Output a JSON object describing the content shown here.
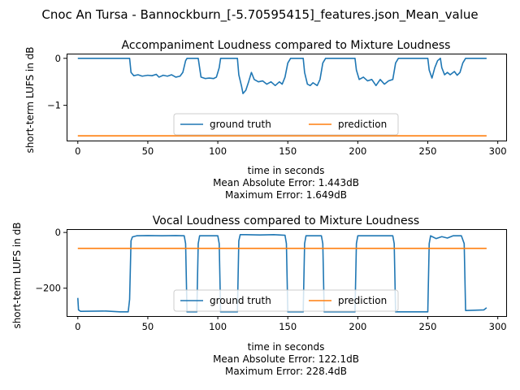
{
  "suptitle": "Cnoc An Tursa - Bannockburn_[-5.70595415]_features.json_Mean_value",
  "chart_data": [
    {
      "type": "line",
      "title": "Accompaniment Loudness compared to Mixture Loudness",
      "xlabel": "time in seconds",
      "ylabel": "short-term LUFS in dB",
      "footer": [
        "Mean Absolute Error: 1.443dB",
        "Maximum Error: 1.649dB"
      ],
      "xlim": [
        -8,
        306
      ],
      "ylim": [
        -1.75,
        0.1
      ],
      "xticks": [
        0,
        50,
        100,
        150,
        200,
        250,
        300
      ],
      "yticks": [
        0,
        -1
      ],
      "ytick_labels": [
        "0",
        "−1"
      ],
      "grid": false,
      "legend": {
        "position": "lower-center",
        "ncol": 2
      },
      "series": [
        {
          "name": "ground truth",
          "color": "#1f77b4",
          "points": [
            [
              0,
              0
            ],
            [
              37,
              0
            ],
            [
              38,
              -0.3
            ],
            [
              40,
              -0.37
            ],
            [
              43,
              -0.35
            ],
            [
              46,
              -0.38
            ],
            [
              50,
              -0.36
            ],
            [
              53,
              -0.37
            ],
            [
              56,
              -0.34
            ],
            [
              58,
              -0.4
            ],
            [
              61,
              -0.36
            ],
            [
              64,
              -0.38
            ],
            [
              67,
              -0.35
            ],
            [
              70,
              -0.4
            ],
            [
              73,
              -0.38
            ],
            [
              75,
              -0.3
            ],
            [
              77,
              -0.05
            ],
            [
              78,
              0
            ],
            [
              86,
              0
            ],
            [
              87,
              -0.2
            ],
            [
              88,
              -0.4
            ],
            [
              91,
              -0.43
            ],
            [
              94,
              -0.42
            ],
            [
              97,
              -0.43
            ],
            [
              99,
              -0.4
            ],
            [
              101,
              -0.2
            ],
            [
              102,
              0
            ],
            [
              114,
              0
            ],
            [
              115,
              -0.35
            ],
            [
              117,
              -0.6
            ],
            [
              118,
              -0.75
            ],
            [
              120,
              -0.68
            ],
            [
              122,
              -0.5
            ],
            [
              124,
              -0.3
            ],
            [
              126,
              -0.45
            ],
            [
              129,
              -0.5
            ],
            [
              132,
              -0.48
            ],
            [
              135,
              -0.55
            ],
            [
              138,
              -0.5
            ],
            [
              141,
              -0.58
            ],
            [
              144,
              -0.5
            ],
            [
              146,
              -0.55
            ],
            [
              148,
              -0.4
            ],
            [
              150,
              -0.1
            ],
            [
              152,
              0
            ],
            [
              161,
              0
            ],
            [
              162,
              -0.3
            ],
            [
              164,
              -0.55
            ],
            [
              166,
              -0.58
            ],
            [
              168,
              -0.52
            ],
            [
              171,
              -0.58
            ],
            [
              173,
              -0.45
            ],
            [
              175,
              -0.1
            ],
            [
              177,
              0
            ],
            [
              198,
              0
            ],
            [
              199,
              -0.25
            ],
            [
              201,
              -0.45
            ],
            [
              204,
              -0.4
            ],
            [
              207,
              -0.48
            ],
            [
              210,
              -0.45
            ],
            [
              213,
              -0.58
            ],
            [
              216,
              -0.45
            ],
            [
              219,
              -0.55
            ],
            [
              222,
              -0.48
            ],
            [
              225,
              -0.45
            ],
            [
              227,
              -0.1
            ],
            [
              229,
              0
            ],
            [
              250,
              0
            ],
            [
              251,
              -0.25
            ],
            [
              253,
              -0.42
            ],
            [
              255,
              -0.2
            ],
            [
              257,
              -0.05
            ],
            [
              259,
              0
            ],
            [
              260,
              -0.2
            ],
            [
              262,
              -0.35
            ],
            [
              264,
              -0.3
            ],
            [
              266,
              -0.35
            ],
            [
              269,
              -0.28
            ],
            [
              271,
              -0.36
            ],
            [
              273,
              -0.3
            ],
            [
              275,
              -0.1
            ],
            [
              277,
              0
            ],
            [
              292,
              0
            ]
          ]
        },
        {
          "name": "prediction",
          "color": "#ff7f0e",
          "points": [
            [
              0,
              -1.649
            ],
            [
              292,
              -1.649
            ]
          ]
        }
      ]
    },
    {
      "type": "line",
      "title": "Vocal Loudness compared to Mixture Loudness",
      "xlabel": "time in seconds",
      "ylabel": "short-term LUFS in dB",
      "footer": [
        "Mean Absolute Error: 122.1dB",
        "Maximum Error: 228.4dB"
      ],
      "xlim": [
        -8,
        306
      ],
      "ylim": [
        -300,
        12
      ],
      "xticks": [
        0,
        50,
        100,
        150,
        200,
        250,
        300
      ],
      "yticks": [
        0,
        -200
      ],
      "ytick_labels": [
        "0",
        "−200"
      ],
      "grid": false,
      "legend": {
        "position": "lower-center",
        "ncol": 2
      },
      "series": [
        {
          "name": "ground truth",
          "color": "#1f77b4",
          "points": [
            [
              0,
              -235
            ],
            [
              0.5,
              -278
            ],
            [
              2,
              -283
            ],
            [
              20,
              -282
            ],
            [
              30,
              -285
            ],
            [
              36,
              -285
            ],
            [
              37,
              -240
            ],
            [
              38,
              -30
            ],
            [
              39,
              -16
            ],
            [
              42,
              -12
            ],
            [
              50,
              -11
            ],
            [
              60,
              -12
            ],
            [
              70,
              -11
            ],
            [
              76,
              -12
            ],
            [
              77,
              -40
            ],
            [
              78,
              -285
            ],
            [
              85,
              -285
            ],
            [
              86,
              -40
            ],
            [
              87,
              -12
            ],
            [
              95,
              -12
            ],
            [
              100,
              -12
            ],
            [
              101,
              -40
            ],
            [
              102,
              -285
            ],
            [
              114,
              -285
            ],
            [
              115,
              -30
            ],
            [
              116,
              -8
            ],
            [
              120,
              -8
            ],
            [
              130,
              -9
            ],
            [
              140,
              -8
            ],
            [
              148,
              -10
            ],
            [
              149,
              -40
            ],
            [
              150,
              -285
            ],
            [
              161,
              -285
            ],
            [
              162,
              -40
            ],
            [
              163,
              -12
            ],
            [
              170,
              -12
            ],
            [
              174,
              -12
            ],
            [
              175,
              -40
            ],
            [
              176,
              -285
            ],
            [
              198,
              -285
            ],
            [
              199,
              -40
            ],
            [
              200,
              -12
            ],
            [
              210,
              -12
            ],
            [
              220,
              -12
            ],
            [
              225,
              -12
            ],
            [
              226,
              -40
            ],
            [
              227,
              -285
            ],
            [
              250,
              -285
            ],
            [
              251,
              -40
            ],
            [
              252,
              -12
            ],
            [
              256,
              -22
            ],
            [
              260,
              -15
            ],
            [
              264,
              -20
            ],
            [
              268,
              -12
            ],
            [
              274,
              -12
            ],
            [
              276,
              -40
            ],
            [
              277,
              -280
            ],
            [
              290,
              -278
            ],
            [
              292,
              -270
            ]
          ]
        },
        {
          "name": "prediction",
          "color": "#ff7f0e",
          "points": [
            [
              0,
              -57
            ],
            [
              292,
              -57
            ]
          ]
        }
      ]
    }
  ]
}
